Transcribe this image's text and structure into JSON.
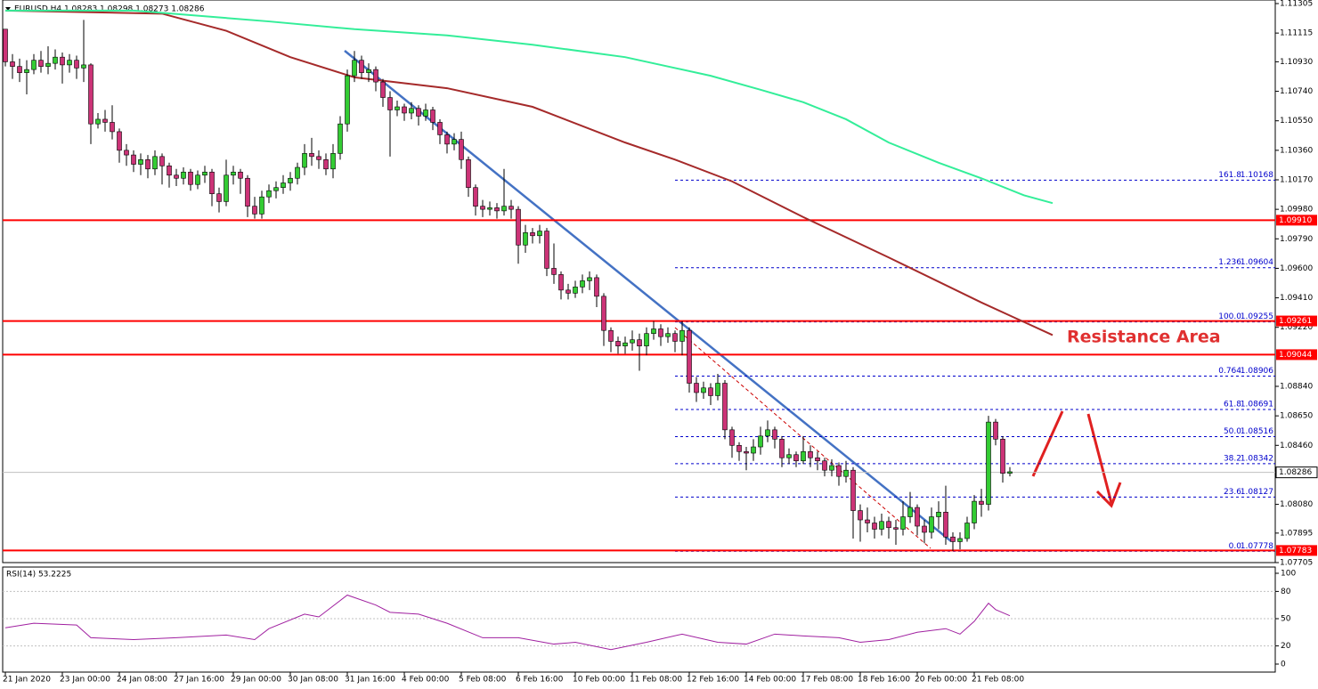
{
  "chart_data": [
    {
      "type": "candlestick",
      "title": "EURUSD,H4  1.08283 1.08298 1.08273 1.08286",
      "up_color": "#33cc33",
      "down_color": "#cc3377",
      "wick_color": "#000000",
      "ylim": [
        1.07705,
        1.11305
      ],
      "yticks": [
        1.11305,
        1.11115,
        {
          "value": 1.1093,
          "label": "1.10930"
        },
        {
          "value": 1.1074,
          "label": "1.10740"
        },
        {
          "value": 1.1055,
          "label": "1.10550"
        },
        {
          "value": 1.1036,
          "label": "1.10360"
        },
        {
          "value": 1.1017,
          "label": "1.10170"
        },
        {
          "value": 1.0998,
          "label": "1.09980"
        },
        {
          "value": 1.0979,
          "label": "1.09790"
        },
        {
          "value": 1.096,
          "label": "1.09600"
        },
        {
          "value": 1.0941,
          "label": "1.09410"
        },
        {
          "value": 1.0922,
          "label": "1.09220"
        },
        {
          "value": 1.0884,
          "label": "1.08840"
        },
        {
          "value": 1.0865,
          "label": "1.08650"
        },
        {
          "value": 1.0846,
          "label": "1.08460"
        },
        {
          "value": 1.0808,
          "label": "1.08080"
        },
        1.07895,
        1.07705
      ],
      "x_labels": [
        "21 Jan 2020",
        "23 Jan 00:00",
        "24 Jan 08:00",
        "27 Jan 16:00",
        "29 Jan 00:00",
        "30 Jan 08:00",
        "31 Jan 16:00",
        "4 Feb 00:00",
        "5 Feb 08:00",
        "6 Feb 16:00",
        "10 Feb 00:00",
        "11 Feb 08:00",
        "12 Feb 16:00",
        "14 Feb 00:00",
        "17 Feb 08:00",
        "18 Feb 16:00",
        "20 Feb 00:00",
        "21 Feb 08:00"
      ],
      "close": [
        1.1093,
        1.109,
        1.1086,
        1.1088,
        1.1094,
        1.109,
        1.1092,
        1.1096,
        1.1091,
        1.1094,
        1.1089,
        1.1091,
        1.1053,
        1.1056,
        1.1054,
        1.1048,
        1.1036,
        1.1033,
        1.1027,
        1.103,
        1.1024,
        1.1032,
        1.1026,
        1.102,
        1.1018,
        1.1022,
        1.1014,
        1.102,
        1.1022,
        1.1008,
        1.1003,
        1.102,
        1.1022,
        1.1018,
        1.1,
        1.0995,
        1.1006,
        1.101,
        1.1012,
        1.1015,
        1.1018,
        1.1025,
        1.1034,
        1.1032,
        1.103,
        1.1024,
        1.1034,
        1.1053,
        1.1084,
        1.1094,
        1.1086,
        1.1088,
        1.108,
        1.107,
        1.1062,
        1.1064,
        1.106,
        1.1063,
        1.1058,
        1.1062,
        1.1054,
        1.1046,
        1.104,
        1.1043,
        1.103,
        1.1012,
        1.1,
        1.0998,
        1.0999,
        1.0997,
        1.1,
        1.0998,
        1.0975,
        1.0983,
        1.0981,
        1.0984,
        1.096,
        1.0956,
        1.0946,
        1.0944,
        1.0948,
        1.0952,
        1.0954,
        1.0942,
        1.092,
        1.0913,
        1.091,
        1.0912,
        1.0914,
        1.091,
        1.0918,
        1.0921,
        1.0916,
        1.0918,
        1.0913,
        1.092,
        1.0886,
        1.088,
        1.0883,
        1.0878,
        1.0886,
        1.0856,
        1.0846,
        1.0842,
        1.0841,
        1.0845,
        1.0852,
        1.0856,
        1.085,
        1.0838,
        1.084,
        1.0836,
        1.0842,
        1.0838,
        1.0836,
        1.083,
        1.0833,
        1.0826,
        1.083,
        1.0804,
        1.0798,
        1.0796,
        1.0792,
        1.0797,
        1.0793,
        1.0792,
        1.08,
        1.0806,
        1.0794,
        1.079,
        1.08,
        1.0803,
        1.0787,
        1.0784,
        1.0786,
        1.0796,
        1.081,
        1.0808,
        1.0861,
        1.085,
        1.0828,
        1.0829
      ],
      "high": [
        1.1114,
        1.1098,
        1.1095,
        1.1094,
        1.1098,
        1.11,
        1.1103,
        1.1101,
        1.1099,
        1.1098,
        1.1097,
        1.112,
        1.1092,
        1.106,
        1.1062,
        1.1065,
        1.105,
        1.104,
        1.1036,
        1.1034,
        1.1033,
        1.1036,
        1.1034,
        1.1028,
        1.1024,
        1.1025,
        1.1024,
        1.1023,
        1.1026,
        1.1024,
        1.1012,
        1.103,
        1.1026,
        1.1024,
        1.102,
        1.1006,
        1.101,
        1.1014,
        1.1016,
        1.102,
        1.1022,
        1.1028,
        1.104,
        1.1044,
        1.1036,
        1.1034,
        1.104,
        1.1058,
        1.1088,
        1.11,
        1.1097,
        1.1092,
        1.109,
        1.1082,
        1.1074,
        1.1068,
        1.1066,
        1.1067,
        1.1065,
        1.1066,
        1.1064,
        1.1056,
        1.1048,
        1.1047,
        1.1048,
        1.1032,
        1.1014,
        1.1004,
        1.1003,
        1.1002,
        1.1024,
        1.1004,
        1.1,
        1.0988,
        1.0986,
        1.0988,
        1.0986,
        1.0976,
        1.0958,
        1.095,
        1.0952,
        1.0956,
        1.0958,
        1.0956,
        1.0944,
        1.0922,
        1.0916,
        1.0916,
        1.092,
        1.0918,
        1.0922,
        1.0926,
        1.0924,
        1.0922,
        1.092,
        1.0926,
        1.0922,
        1.089,
        1.0887,
        1.0886,
        1.0892,
        1.0888,
        1.0858,
        1.0848,
        1.0845,
        1.085,
        1.0858,
        1.0862,
        1.0858,
        1.0852,
        1.0844,
        1.0842,
        1.0852,
        1.0846,
        1.0842,
        1.0838,
        1.0837,
        1.0835,
        1.0836,
        1.0832,
        1.0808,
        1.0806,
        1.08,
        1.0802,
        1.08,
        1.0798,
        1.081,
        1.0816,
        1.0808,
        1.0798,
        1.0806,
        1.081,
        1.082,
        1.079,
        1.079,
        1.08,
        1.0814,
        1.0818,
        1.0865,
        1.0863,
        1.0852,
        1.0832
      ],
      "low": [
        1.109,
        1.1082,
        1.108,
        1.1072,
        1.1085,
        1.1086,
        1.1085,
        1.1088,
        1.1079,
        1.1086,
        1.1082,
        1.108,
        1.104,
        1.105,
        1.1048,
        1.1043,
        1.1028,
        1.1026,
        1.1022,
        1.102,
        1.1018,
        1.102,
        1.1014,
        1.1012,
        1.1013,
        1.1014,
        1.101,
        1.1011,
        1.1015,
        1.1,
        1.0996,
        1.1,
        1.1014,
        1.1008,
        1.0993,
        1.0992,
        1.0992,
        1.1002,
        1.1005,
        1.1008,
        1.101,
        1.1014,
        1.102,
        1.1026,
        1.1024,
        1.102,
        1.1018,
        1.103,
        1.1048,
        1.108,
        1.1082,
        1.108,
        1.1074,
        1.1064,
        1.1032,
        1.1058,
        1.1055,
        1.1056,
        1.1052,
        1.1055,
        1.1049,
        1.104,
        1.1034,
        1.1036,
        1.1024,
        1.1006,
        1.0994,
        1.0993,
        1.0994,
        1.0992,
        1.0994,
        1.0992,
        1.0963,
        1.097,
        1.0976,
        1.0976,
        1.0955,
        1.095,
        1.094,
        1.094,
        1.0941,
        1.0944,
        1.0946,
        1.0935,
        1.091,
        1.0906,
        1.0905,
        1.0905,
        1.0907,
        1.0894,
        1.0904,
        1.0914,
        1.091,
        1.0912,
        1.0906,
        1.0904,
        1.088,
        1.0874,
        1.0876,
        1.0872,
        1.0875,
        1.085,
        1.0838,
        1.0836,
        1.083,
        1.0836,
        1.084,
        1.0848,
        1.0844,
        1.0832,
        1.0834,
        1.0832,
        1.0834,
        1.0832,
        1.083,
        1.0826,
        1.0826,
        1.082,
        1.0822,
        1.0786,
        1.0784,
        1.079,
        1.0786,
        1.0788,
        1.0786,
        1.0782,
        1.0788,
        1.0796,
        1.0788,
        1.0783,
        1.0786,
        1.0792,
        1.0782,
        1.0778,
        1.0779,
        1.0784,
        1.0792,
        1.08,
        1.0804,
        1.0846,
        1.0822,
        1.0826
      ],
      "lines": [
        {
          "color": "#a52a2a",
          "x": [
            0,
            22,
            31,
            40,
            49,
            62,
            74,
            87,
            94,
            102,
            112,
            124,
            137,
            147
          ],
          "values": [
            1.1126,
            1.1124,
            1.1113,
            1.1096,
            1.1083,
            1.1076,
            1.1064,
            1.1041,
            1.103,
            1.1016,
            1.0993,
            1.0967,
            1.0938,
            1.0917
          ]
        },
        {
          "color": "#33ee99",
          "x": [
            0,
            18,
            37,
            49,
            62,
            74,
            87,
            99,
            106,
            112,
            118,
            124,
            131,
            137,
            143,
            147
          ],
          "values": [
            1.1126,
            1.1126,
            1.1119,
            1.1114,
            1.111,
            1.1104,
            1.1096,
            1.1084,
            1.1075,
            1.1067,
            1.1056,
            1.1041,
            1.1028,
            1.1018,
            1.1007,
            1.1002
          ]
        }
      ],
      "levels": [
        {
          "value": 1.0991,
          "label": "1.09910"
        },
        {
          "value": 1.09261,
          "label": "1.09261"
        },
        {
          "value": 1.09044,
          "label": "1.09044"
        },
        {
          "value": 1.07783,
          "label": "1.07783"
        }
      ],
      "level_color": "#ff0000",
      "current": 1.08286,
      "fib": [
        {
          "level": "161.8",
          "price": 1.10168
        },
        {
          "level": "1.236",
          "price": 1.09604
        },
        {
          "level": "100.0",
          "price": 1.09255
        },
        {
          "level": "0.764",
          "price": 1.08906
        },
        {
          "level": "61.8",
          "price": 1.08691
        },
        {
          "level": "50.0",
          "price": 1.08516
        },
        {
          "level": "38.2",
          "price": 1.08342
        },
        {
          "level": "23.6",
          "price": 1.08127
        },
        {
          "level": "0.0",
          "price": 1.07778
        }
      ],
      "fib_color": "#0000cc",
      "annotation": "Resistance Area"
    },
    {
      "type": "line",
      "title": "RSI(14) 53.2225",
      "color": "#a020a0",
      "ylim": [
        0,
        100
      ],
      "yticks": [
        0,
        20,
        50,
        80,
        100
      ],
      "x": [
        0,
        4,
        10,
        12,
        18,
        24,
        31,
        35,
        37,
        42,
        44,
        48,
        52,
        54,
        58,
        62,
        67,
        72,
        77,
        80,
        85,
        90,
        95,
        100,
        104,
        108,
        112,
        117,
        120,
        124,
        128,
        132,
        134,
        136,
        138,
        139,
        141
      ],
      "values": [
        40,
        45,
        43,
        29,
        27,
        29,
        32,
        27,
        39,
        55,
        52,
        76,
        65,
        57,
        55,
        45,
        29,
        29,
        22,
        24,
        16,
        24,
        33,
        24,
        22,
        33,
        31,
        29,
        24,
        27,
        35,
        39,
        33,
        47,
        67,
        60,
        53.2225
      ]
    }
  ]
}
